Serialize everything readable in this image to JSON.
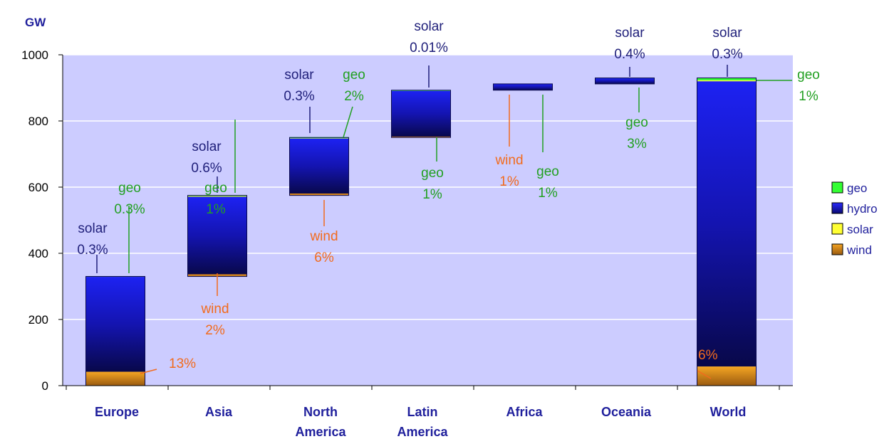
{
  "chart_data": {
    "type": "bar",
    "subtype": "waterfall",
    "unit_label": "GW",
    "ylim": [
      0,
      1000
    ],
    "yticks": [
      0,
      200,
      400,
      600,
      800,
      1000
    ],
    "grid": true,
    "legend_position": "right",
    "categories": [
      {
        "label": [
          "Europe"
        ],
        "base": 0,
        "total": 330,
        "wind": 42,
        "hydro": 287,
        "solar": 1,
        "geo": 1
      },
      {
        "label": [
          "Asia"
        ],
        "base": 330,
        "total": 575,
        "wind": 5,
        "hydro": 236,
        "solar": 2,
        "geo": 2
      },
      {
        "label": [
          "North",
          "America"
        ],
        "base": 575,
        "total": 750,
        "wind": 4,
        "hydro": 168,
        "solar": 1,
        "geo": 3
      },
      {
        "label": [
          "Latin",
          "America"
        ],
        "base": 750,
        "total": 893,
        "wind": 1,
        "hydro": 140,
        "solar": 0,
        "geo": 2
      },
      {
        "label": [
          "Africa"
        ],
        "base": 893,
        "total": 912,
        "wind": 0,
        "hydro": 19,
        "solar": 0,
        "geo": 0
      },
      {
        "label": [
          "Oceania"
        ],
        "base": 912,
        "total": 930,
        "wind": 0,
        "hydro": 17,
        "solar": 0,
        "geo": 1
      },
      {
        "label": [
          "World"
        ],
        "base": 0,
        "total": 930,
        "wind": 58,
        "hydro": 862,
        "solar": 3,
        "geo": 7
      }
    ],
    "legend": [
      {
        "key": "geo",
        "label": "geo",
        "color": "#33ff33"
      },
      {
        "key": "hydro",
        "label": "hydro",
        "color": "#1a1acc"
      },
      {
        "key": "solar",
        "label": "solar",
        "color": "#ffff33"
      },
      {
        "key": "wind",
        "label": "wind",
        "color": "#e08a1e"
      }
    ],
    "annotations": [
      {
        "cat": 0,
        "series": "solar",
        "lines": [
          "solar",
          "0.3%"
        ]
      },
      {
        "cat": 0,
        "series": "geo",
        "lines": [
          "geo",
          "0.3%"
        ]
      },
      {
        "cat": 0,
        "series": "wind",
        "lines": [
          "13%"
        ]
      },
      {
        "cat": 1,
        "series": "solar",
        "lines": [
          "solar",
          "0.6%"
        ]
      },
      {
        "cat": 1,
        "series": "geo",
        "lines": [
          "geo",
          "1%"
        ]
      },
      {
        "cat": 1,
        "series": "wind",
        "lines": [
          "wind",
          "2%"
        ]
      },
      {
        "cat": 2,
        "series": "solar",
        "lines": [
          "solar",
          "0.3%"
        ]
      },
      {
        "cat": 2,
        "series": "geo",
        "lines": [
          "geo",
          "2%"
        ]
      },
      {
        "cat": 2,
        "series": "wind",
        "lines": [
          "wind",
          "6%"
        ]
      },
      {
        "cat": 3,
        "series": "solar",
        "lines": [
          "solar",
          "0.01%"
        ]
      },
      {
        "cat": 3,
        "series": "geo",
        "lines": [
          "geo",
          "1%"
        ]
      },
      {
        "cat": 4,
        "series": "wind",
        "lines": [
          "wind",
          "1%"
        ]
      },
      {
        "cat": 4,
        "series": "geo",
        "lines": [
          "geo",
          "1%"
        ]
      },
      {
        "cat": 5,
        "series": "solar",
        "lines": [
          "solar",
          "0.4%"
        ]
      },
      {
        "cat": 5,
        "series": "geo",
        "lines": [
          "geo",
          "3%"
        ]
      },
      {
        "cat": 6,
        "series": "solar",
        "lines": [
          "solar",
          "0.3%"
        ]
      },
      {
        "cat": 6,
        "series": "geo",
        "lines": [
          "geo",
          "1%"
        ]
      },
      {
        "cat": 6,
        "series": "wind",
        "lines": [
          "6%"
        ]
      }
    ],
    "colors": {
      "plot_background": "#ccccff",
      "solar_text": "#1f1f7a",
      "geo_text": "#22a022",
      "wind_text": "#f26b1d",
      "category_text": "#1f1f9c"
    }
  }
}
